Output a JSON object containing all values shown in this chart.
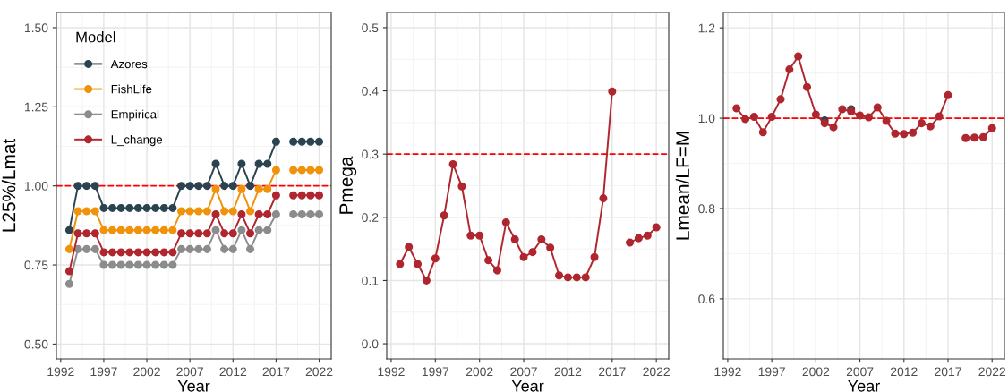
{
  "chart_data": [
    {
      "type": "line",
      "xlabel": "Year",
      "ylabel": "L25%/Lmat",
      "legend_title": "Model",
      "legend": "top left",
      "grid": true,
      "marker": "circle",
      "line_style": "solid",
      "x": [
        1993,
        1994,
        1995,
        1996,
        1997,
        1998,
        1999,
        2000,
        2001,
        2002,
        2003,
        2004,
        2005,
        2006,
        2007,
        2008,
        2009,
        2010,
        2011,
        2012,
        2013,
        2014,
        2015,
        2016,
        2017,
        2018,
        2019,
        2020,
        2021,
        2022
      ],
      "xlim": [
        1991.5,
        2023.4
      ],
      "xticks": [
        1992,
        1997,
        2002,
        2007,
        2012,
        2017,
        2022
      ],
      "ylim": [
        0.453,
        1.548
      ],
      "yticks": [
        {
          "value": 0.5,
          "label": "0.50"
        },
        {
          "value": 0.75,
          "label": "0.75"
        },
        {
          "value": 1.0,
          "label": "1.00"
        },
        {
          "value": 1.25,
          "label": "1.25"
        },
        {
          "value": 1.5,
          "label": "1.50"
        }
      ],
      "ref_lines": [
        {
          "axis": "y",
          "value": 1.0,
          "color": "#ff0000",
          "line_style": "dashed"
        }
      ],
      "series": [
        {
          "name": "Azores",
          "color": "#2b4350",
          "values": [
            0.86,
            1.0,
            1.0,
            1.0,
            0.93,
            0.93,
            0.93,
            0.93,
            0.93,
            0.93,
            0.93,
            0.93,
            0.93,
            1.0,
            1.0,
            1.0,
            1.0,
            1.07,
            1.0,
            1.0,
            1.07,
            1.0,
            1.07,
            1.07,
            1.14,
            null,
            1.14,
            1.14,
            1.14,
            1.14
          ]
        },
        {
          "name": "FishLife",
          "color": "#f0920a",
          "values": [
            0.8,
            0.92,
            0.92,
            0.92,
            0.86,
            0.86,
            0.86,
            0.86,
            0.86,
            0.86,
            0.86,
            0.86,
            0.86,
            0.92,
            0.92,
            0.92,
            0.92,
            0.99,
            0.92,
            0.92,
            0.99,
            0.92,
            0.99,
            0.99,
            1.05,
            null,
            1.05,
            1.05,
            1.05,
            1.05
          ]
        },
        {
          "name": "Empirical",
          "color": "#8c8c8c",
          "values": [
            0.69,
            0.8,
            0.8,
            0.8,
            0.75,
            0.75,
            0.75,
            0.75,
            0.75,
            0.75,
            0.75,
            0.75,
            0.75,
            0.8,
            0.8,
            0.8,
            0.8,
            0.86,
            0.8,
            0.8,
            0.86,
            0.8,
            0.86,
            0.86,
            0.91,
            null,
            0.91,
            0.91,
            0.91,
            0.91
          ]
        },
        {
          "name": "L_change",
          "color": "#b0262e",
          "values": [
            0.73,
            0.85,
            0.85,
            0.85,
            0.79,
            0.79,
            0.79,
            0.79,
            0.79,
            0.79,
            0.79,
            0.79,
            0.79,
            0.85,
            0.85,
            0.85,
            0.85,
            0.91,
            0.85,
            0.85,
            0.91,
            0.85,
            0.91,
            0.91,
            0.97,
            null,
            0.97,
            0.97,
            0.97,
            0.97
          ]
        }
      ]
    },
    {
      "type": "line",
      "xlabel": "Year",
      "ylabel": "Pmega",
      "grid": true,
      "marker": "circle",
      "line_style": "solid",
      "x": [
        1993,
        1994,
        1995,
        1996,
        1997,
        1998,
        1999,
        2000,
        2001,
        2002,
        2003,
        2004,
        2005,
        2006,
        2007,
        2008,
        2009,
        2010,
        2011,
        2012,
        2013,
        2014,
        2015,
        2016,
        2017,
        2018,
        2019,
        2020,
        2021,
        2022
      ],
      "xlim": [
        1991.5,
        2023.4
      ],
      "xticks": [
        1992,
        1997,
        2002,
        2007,
        2012,
        2017,
        2022
      ],
      "ylim": [
        -0.024,
        0.524
      ],
      "yticks": [
        {
          "value": 0,
          "label": "0.0"
        },
        0.1,
        0.2,
        0.3,
        0.4,
        0.5
      ],
      "ref_lines": [
        {
          "axis": "y",
          "value": 0.3,
          "color": "#ff0000",
          "line_style": "dashed"
        }
      ],
      "series": [
        {
          "color": "#b0262e",
          "values": [
            0.126,
            0.153,
            0.126,
            0.1,
            0.135,
            0.203,
            0.284,
            0.249,
            0.171,
            0.171,
            0.132,
            0.116,
            0.192,
            0.165,
            0.137,
            0.145,
            0.165,
            0.152,
            0.108,
            0.105,
            0.105,
            0.105,
            0.137,
            0.23,
            0.399,
            null,
            0.16,
            0.167,
            0.171,
            0.184
          ]
        }
      ]
    },
    {
      "type": "line",
      "xlabel": "Year",
      "ylabel": "Lmean/LF=M",
      "grid": true,
      "marker": "circle",
      "line_style": "solid",
      "x": [
        1993,
        1994,
        1995,
        1996,
        1997,
        1998,
        1999,
        2000,
        2001,
        2002,
        2003,
        2004,
        2005,
        2006,
        2007,
        2008,
        2009,
        2010,
        2011,
        2012,
        2013,
        2014,
        2015,
        2016,
        2017,
        2018,
        2019,
        2020,
        2021,
        2022
      ],
      "xlim": [
        1991.5,
        2023.4
      ],
      "xticks": [
        1992,
        1997,
        2002,
        2007,
        2012,
        2017,
        2022
      ],
      "ylim": [
        0.467,
        1.234
      ],
      "yticks": [
        0.6,
        0.8,
        {
          "value": 1.0,
          "label": "1.0"
        },
        1.2
      ],
      "ref_lines": [
        {
          "axis": "y",
          "value": 1.0,
          "color": "#ff0000",
          "line_style": "dashed"
        }
      ],
      "series": [
        {
          "type": "scatter",
          "color": "#2b4350",
          "x": [
            2003,
            2006
          ],
          "values": [
            0.995,
            1.02
          ]
        },
        {
          "color": "#b0262e",
          "values": [
            1.022,
            0.998,
            1.003,
            0.969,
            1.003,
            1.042,
            1.108,
            1.137,
            1.069,
            1.008,
            0.989,
            0.98,
            1.02,
            1.015,
            1.006,
            1.002,
            1.024,
            0.994,
            0.966,
            0.965,
            0.968,
            0.989,
            0.982,
            1.004,
            1.051,
            null,
            0.956,
            0.957,
            0.958,
            0.978
          ]
        }
      ]
    }
  ]
}
